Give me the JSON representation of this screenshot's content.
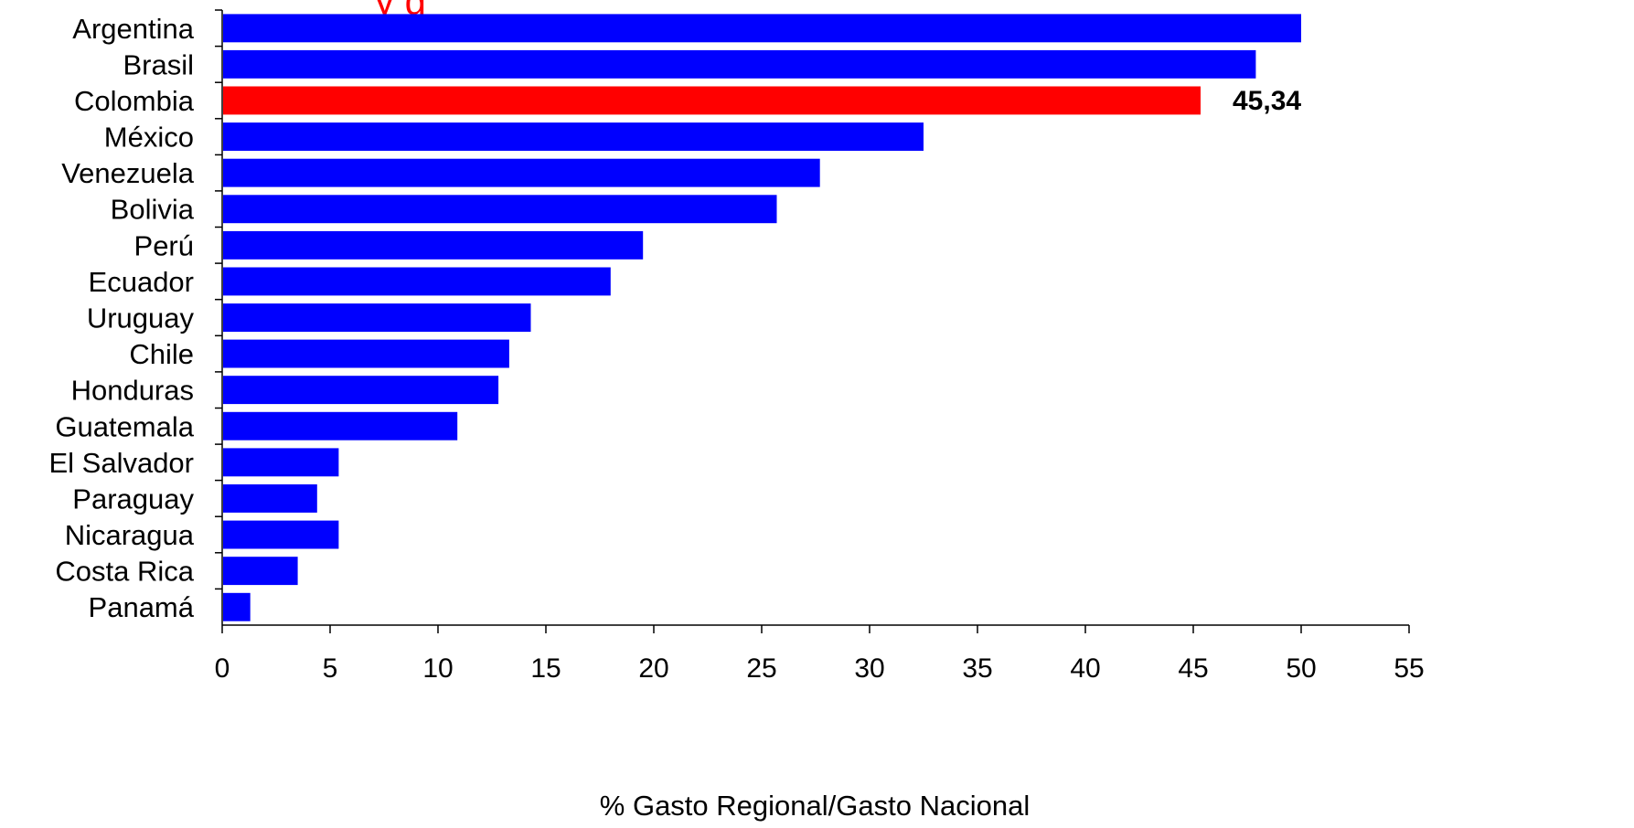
{
  "chart_data": {
    "type": "bar",
    "orientation": "horizontal",
    "title": "y g",
    "xlabel": "% Gasto Regional/Gasto Nacional",
    "ylabel": "",
    "xlim": [
      0,
      55
    ],
    "x_ticks": [
      0,
      5,
      10,
      15,
      20,
      25,
      30,
      35,
      40,
      45,
      50,
      55
    ],
    "grid": false,
    "legend": "none",
    "categories": [
      "Argentina",
      "Brasil",
      "Colombia",
      "México",
      "Venezuela",
      "Bolivia",
      "Perú",
      "Ecuador",
      "Uruguay",
      "Chile",
      "Honduras",
      "Guatemala",
      "El Salvador",
      "Paraguay",
      "Nicaragua",
      "Costa Rica",
      "Panamá"
    ],
    "values": [
      50.0,
      47.9,
      45.34,
      32.5,
      27.7,
      25.7,
      19.5,
      18.0,
      14.3,
      13.3,
      12.8,
      10.9,
      5.4,
      4.4,
      5.4,
      3.5,
      1.3
    ],
    "highlight": {
      "category": "Colombia",
      "color": "#ff0000",
      "label": "45,34"
    },
    "bar_color": "#0000ff",
    "title_color": "#ff0000"
  }
}
